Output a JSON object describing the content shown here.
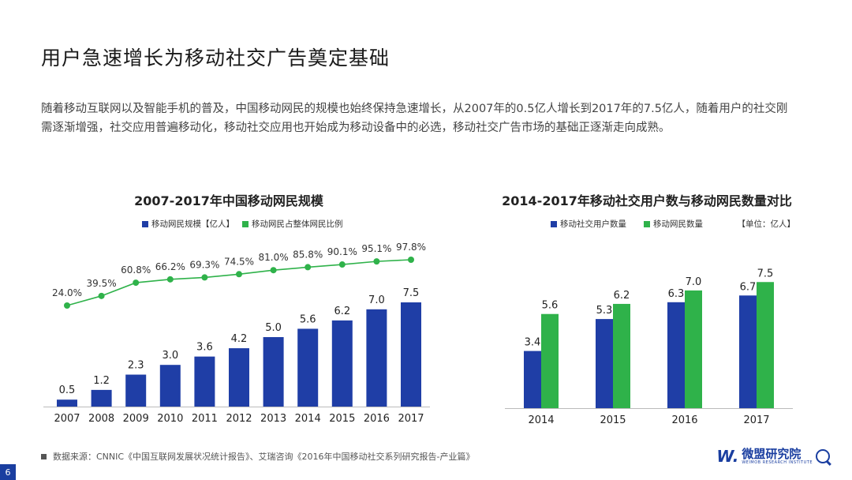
{
  "header": {
    "title": "用户急速增长为移动社交广告奠定基础",
    "description": "随着移动互联网以及智能手机的普及，中国移动网民的规模也始终保持急速增长，从2007年的0.5亿人增长到2017年的7.5亿人，随着用户的社交刚需逐渐增强，社交应用普遍移动化，移动社交应用也开始成为移动设备中的必选，移动社交广告市场的基础正逐渐走向成熟。"
  },
  "colors": {
    "blue": "#1f3ea6",
    "green": "#2fb24a",
    "axis": "#bbbbbb"
  },
  "chart_data": [
    {
      "type": "bar",
      "title": "2007-2017年中国移动网民规模",
      "categories": [
        "2007",
        "2008",
        "2009",
        "2010",
        "2011",
        "2012",
        "2013",
        "2014",
        "2015",
        "2016",
        "2017"
      ],
      "series": [
        {
          "name": "移动网民规模【亿人】",
          "type": "bar",
          "values": [
            0.5,
            1.2,
            2.3,
            3.0,
            3.6,
            4.2,
            5.0,
            5.6,
            6.2,
            7.0,
            7.5
          ],
          "labels": [
            "0.5",
            "1.2",
            "2.3",
            "3.0",
            "3.6",
            "4.2",
            "5.0",
            "5.6",
            "6.2",
            "7.0",
            "7.5"
          ]
        },
        {
          "name": "移动网民占整体网民比例",
          "type": "line",
          "values": [
            24.0,
            39.5,
            60.8,
            66.2,
            69.3,
            74.5,
            81.0,
            85.8,
            90.1,
            95.1,
            97.8
          ],
          "labels": [
            "24.0%",
            "39.5%",
            "60.8%",
            "66.2%",
            "69.3%",
            "74.5%",
            "81.0%",
            "85.8%",
            "90.1%",
            "95.1%",
            "97.8%"
          ]
        }
      ]
    },
    {
      "type": "bar",
      "title": "2014-2017年移动社交用户数与移动网民数量对比",
      "unit": "【单位：亿人】",
      "categories": [
        "2014",
        "2015",
        "2016",
        "2017"
      ],
      "series": [
        {
          "name": "移动社交用户数量",
          "values": [
            3.4,
            5.3,
            6.3,
            6.7
          ],
          "labels": [
            "3.4",
            "5.3",
            "6.3",
            "6.7"
          ]
        },
        {
          "name": "移动网民数量",
          "values": [
            5.6,
            6.2,
            7.0,
            7.5
          ],
          "labels": [
            "5.6",
            "6.2",
            "7.0",
            "7.5"
          ]
        }
      ]
    }
  ],
  "footer": {
    "source": "数据来源：CNNIC《中国互联网发展状况统计报告》、艾瑞咨询《2016年中国移动社交系列研究报告-产业篇》",
    "page": "6",
    "logo_mark": "W.",
    "logo_name": "微盟研究院",
    "logo_en": "WEIMOB RESEARCH INSTITUTE"
  }
}
